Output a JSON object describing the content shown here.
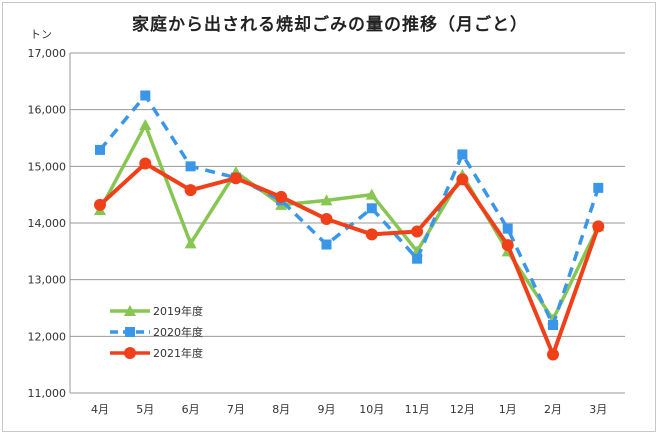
{
  "chart_data": {
    "type": "line",
    "title": "家庭から出される焼却ごみの量の推移（月ごと）",
    "ylabel": "トン",
    "categories": [
      "4月",
      "5月",
      "6月",
      "7月",
      "8月",
      "9月",
      "10月",
      "11月",
      "12月",
      "1月",
      "2月",
      "3月"
    ],
    "ylim": [
      11000,
      17000
    ],
    "yticks": [
      11000,
      12000,
      13000,
      14000,
      15000,
      16000,
      17000
    ],
    "ytick_labels": [
      "11,000",
      "12,000",
      "13,000",
      "14,000",
      "15,000",
      "16,000",
      "17,000"
    ],
    "grid": true,
    "legend_position": "bottom-left",
    "series": [
      {
        "name": "2019年度",
        "color": "#88c653",
        "marker": "triangle",
        "dash": false,
        "values": [
          14230,
          15730,
          13640,
          14900,
          14320,
          14400,
          14500,
          13500,
          14850,
          13500,
          12300,
          13940
        ]
      },
      {
        "name": "2020年度",
        "color": "#3a96e8",
        "marker": "square",
        "dash": true,
        "values": [
          15290,
          16250,
          15000,
          14800,
          14400,
          13620,
          14260,
          13370,
          15210,
          13900,
          12200,
          14620
        ]
      },
      {
        "name": "2021年度",
        "color": "#f0401a",
        "marker": "circle",
        "dash": false,
        "values": [
          14320,
          15050,
          14580,
          14790,
          14460,
          14070,
          13800,
          13850,
          14770,
          13610,
          11680,
          13940
        ]
      }
    ]
  }
}
